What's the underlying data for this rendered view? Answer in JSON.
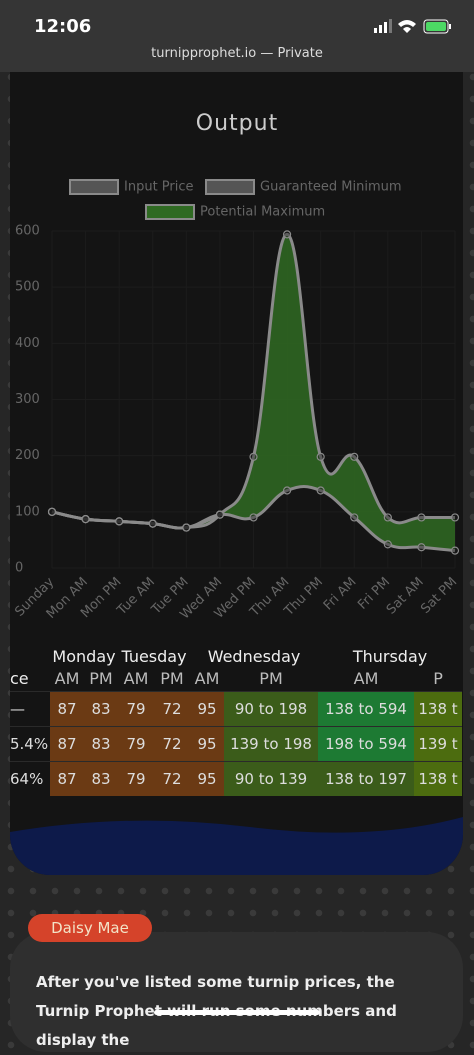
{
  "status_bar": {
    "time": "12:06"
  },
  "url_bar": "turnipprophet.io — Private",
  "chart_data": {
    "type": "line",
    "title": "Output",
    "categories": [
      "Sunday",
      "Mon AM",
      "Mon PM",
      "Tue AM",
      "Tue PM",
      "Wed AM",
      "Wed PM",
      "Thu AM",
      "Thu PM",
      "Fri AM",
      "Fri PM",
      "Sat AM",
      "Sat PM"
    ],
    "series": [
      {
        "name": "Input Price",
        "color": "#8a8a8a",
        "fill": "#555555",
        "values": [
          100,
          87,
          83,
          79,
          72,
          95,
          null,
          null,
          null,
          null,
          null,
          null,
          null
        ]
      },
      {
        "name": "Guaranteed Minimum",
        "color": "#8a8a8a",
        "fill": "#555555",
        "values": [
          100,
          87,
          83,
          79,
          72,
          95,
          90,
          138,
          138,
          90,
          42,
          37,
          31
        ]
      },
      {
        "name": "Potential Maximum",
        "color": "#8a8a8a",
        "fill": "#2f6a22",
        "values": [
          100,
          87,
          83,
          79,
          72,
          95,
          198,
          594,
          198,
          198,
          90,
          90,
          90
        ]
      }
    ],
    "ylim": [
      0,
      600
    ],
    "yticks": [
      0,
      100,
      200,
      300,
      400,
      500,
      600
    ],
    "grid": true
  },
  "table": {
    "days": [
      "Monday",
      "Tuesday",
      "Wednesday",
      "Thursday"
    ],
    "header_label": "ce",
    "periods": [
      "AM",
      "PM",
      "AM",
      "PM",
      "AM",
      "PM",
      "AM",
      "P"
    ],
    "rows": [
      [
        "—",
        "87",
        "83",
        "79",
        "72",
        "95",
        "90 to 198",
        "138 to 594",
        "138 t"
      ],
      [
        "5.4%",
        "87",
        "83",
        "79",
        "72",
        "95",
        "139 to 198",
        "198 to 594",
        "139 t"
      ],
      [
        "64%",
        "87",
        "83",
        "79",
        "72",
        "95",
        "90 to 139",
        "138 to 197",
        "138 t"
      ]
    ]
  },
  "badge": "Daisy Mae",
  "paragraph": "After you've listed some turnip prices, the Turnip Prophet will run some numbers and display the"
}
